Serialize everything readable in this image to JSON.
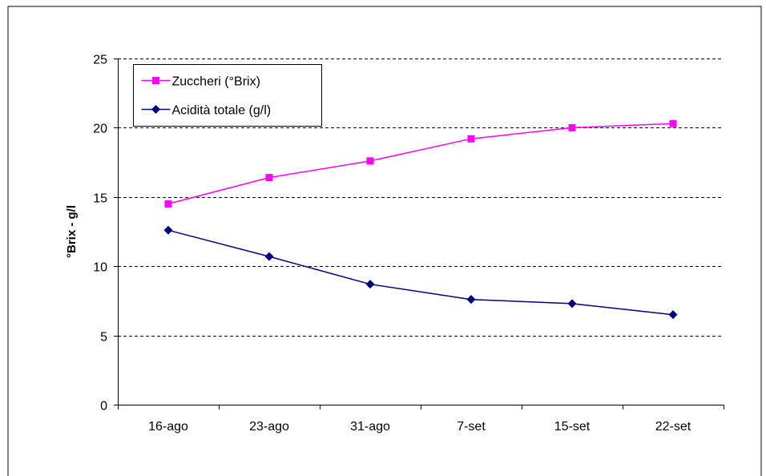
{
  "chart_data": {
    "type": "line",
    "title": "",
    "xlabel": "",
    "ylabel": "°Brix - g/l",
    "categories": [
      "16-ago",
      "23-ago",
      "31-ago",
      "7-set",
      "15-set",
      "22-set"
    ],
    "ylim": [
      0,
      25
    ],
    "yticks": [
      0,
      5,
      10,
      15,
      20,
      25
    ],
    "grid": "horizontal dashed",
    "legend_position": "top-left",
    "series": [
      {
        "name": "Zuccheri (°Brix)",
        "values": [
          14.5,
          16.4,
          17.6,
          19.2,
          20.0,
          20.3
        ],
        "color": "#ff00ff",
        "marker": "square"
      },
      {
        "name": "Acidità totale (g/l)",
        "values": [
          12.6,
          10.7,
          8.7,
          7.6,
          7.3,
          6.5
        ],
        "color": "#000080",
        "marker": "diamond"
      }
    ]
  }
}
